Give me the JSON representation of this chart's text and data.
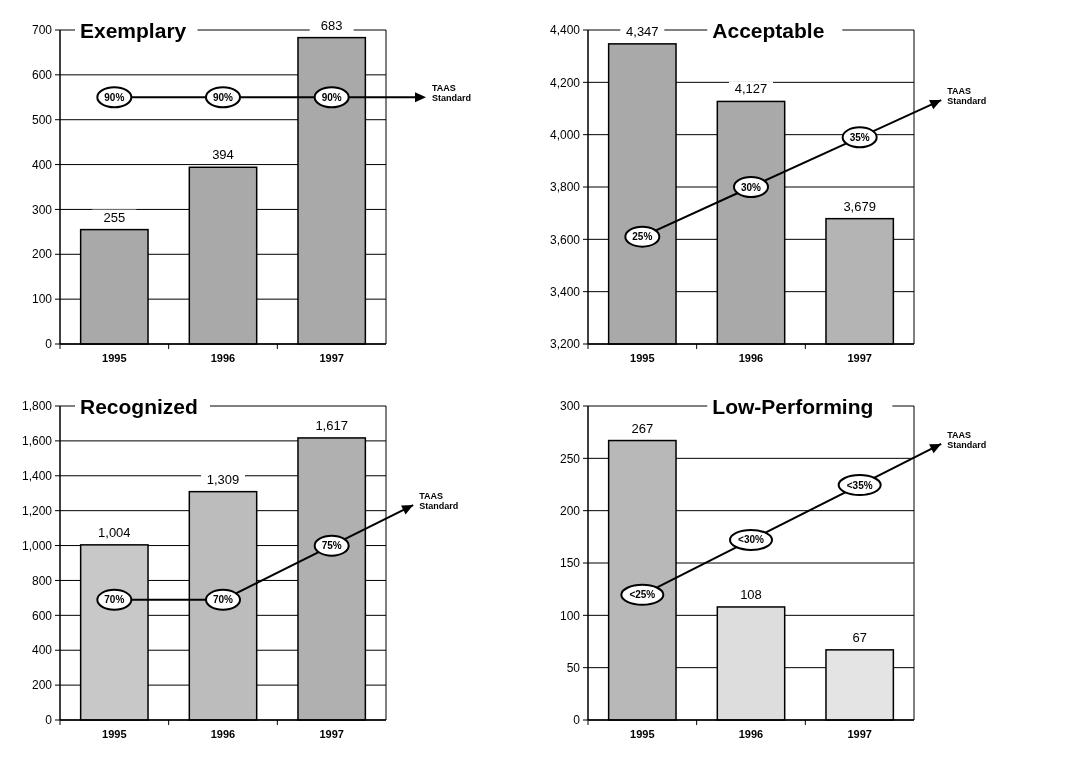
{
  "chart_data": [
    {
      "type": "bar",
      "title": "Exemplary",
      "categories": [
        "1995",
        "1996",
        "1997"
      ],
      "ylim": [
        0,
        700
      ],
      "yticks": [
        0,
        100,
        200,
        300,
        400,
        500,
        600,
        700
      ],
      "grid": "y",
      "series": [
        {
          "values": [
            255,
            394,
            683
          ],
          "value_labels": [
            "255",
            "394",
            "683"
          ],
          "colors": [
            "#a9a9a9",
            "#a9a9a9",
            "#a9a9a9"
          ]
        }
      ],
      "ref_lines": [
        {
          "axis": "y",
          "value": 550,
          "label": "TAAS Standard",
          "color": "#000000"
        }
      ],
      "annotations": [
        {
          "text": "90%",
          "x": "1995",
          "y": 550
        },
        {
          "text": "90%",
          "x": "1996",
          "y": 550
        },
        {
          "text": "90%",
          "x": "1997",
          "y": 550
        }
      ]
    },
    {
      "type": "bar",
      "title": "Acceptable",
      "categories": [
        "1995",
        "1996",
        "1997"
      ],
      "ylim": [
        3200,
        4400
      ],
      "yticks": [
        {
          "value": 3200,
          "label": "3,200"
        },
        {
          "value": 3400,
          "label": "3,400"
        },
        {
          "value": 3600,
          "label": "3,600"
        },
        {
          "value": 3800,
          "label": "3,800"
        },
        {
          "value": 4000,
          "label": "4,000"
        },
        {
          "value": 4200,
          "label": "4,200"
        },
        {
          "value": 4400,
          "label": "4,400"
        }
      ],
      "y2lim": [
        14.2,
        45.8
      ],
      "grid": "y",
      "series": [
        {
          "values": [
            4347,
            4127,
            3679
          ],
          "value_labels": [
            "4,347",
            "4,127",
            "3,679"
          ],
          "colors": [
            "#a9a9a9",
            "#a9a9a9",
            "#b4b4b4"
          ]
        },
        {
          "type": "line",
          "axis": "y2",
          "marker": "circle",
          "name": "TAAS Standard",
          "color": "#000000",
          "values": [
            25,
            30,
            35
          ],
          "value_labels": [
            "25%",
            "30%",
            "35%"
          ]
        }
      ]
    },
    {
      "type": "bar",
      "title": "Recognized",
      "categories": [
        "1995",
        "1996",
        "1997"
      ],
      "ylim": [
        0,
        1800
      ],
      "yticks": [
        0,
        200,
        400,
        600,
        800,
        {
          "value": 1000,
          "label": "1,000"
        },
        {
          "value": 1200,
          "label": "1,200"
        },
        {
          "value": 1400,
          "label": "1,400"
        },
        {
          "value": 1600,
          "label": "1,600"
        },
        {
          "value": 1800,
          "label": "1,800"
        }
      ],
      "y2lim": [
        58.9,
        87.9
      ],
      "grid": "y",
      "series": [
        {
          "values": [
            1004,
            1309,
            1617
          ],
          "value_labels": [
            "1,004",
            "1,309",
            "1,617"
          ],
          "colors": [
            "#c8c8c8",
            "#bcbcbc",
            "#b0b0b0"
          ]
        },
        {
          "type": "line",
          "axis": "y2",
          "marker": "circle",
          "name": "TAAS Standard",
          "color": "#000000",
          "values": [
            70,
            70,
            75
          ],
          "value_labels": [
            "70%",
            "70%",
            "75%"
          ]
        }
      ]
    },
    {
      "type": "bar",
      "title": "Low-Performing",
      "categories": [
        "1995",
        "1996",
        "1997"
      ],
      "ylim": [
        0,
        300
      ],
      "yticks": [
        0,
        50,
        100,
        150,
        200,
        250,
        300
      ],
      "y2lim": [
        13.6,
        42.2
      ],
      "grid": "y",
      "series": [
        {
          "values": [
            267,
            108,
            67
          ],
          "value_labels": [
            "267",
            "108",
            "67"
          ],
          "colors": [
            "#b8b8b8",
            "#dddddd",
            "#e4e4e4"
          ]
        },
        {
          "type": "line",
          "axis": "y2",
          "marker": "circle",
          "name": "TAAS Standard",
          "color": "#000000",
          "values": [
            25,
            30,
            35
          ],
          "value_labels": [
            "<25%",
            "<30%",
            "<35%"
          ]
        }
      ]
    }
  ]
}
